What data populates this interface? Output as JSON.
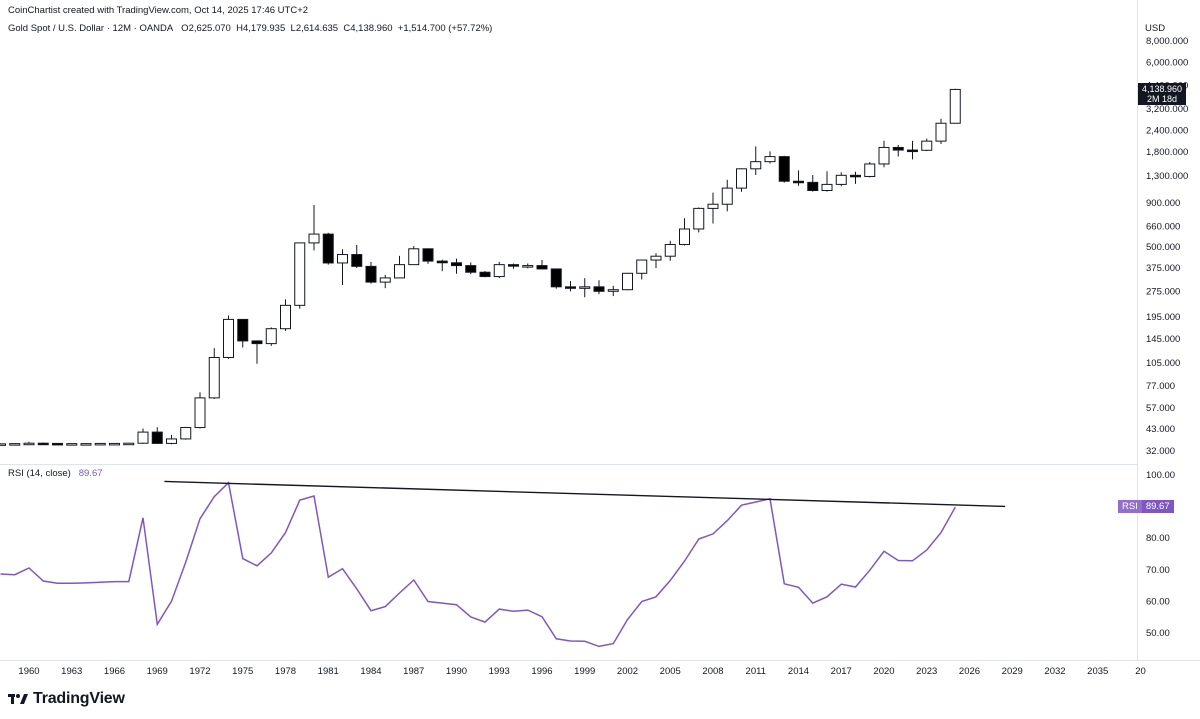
{
  "header": {
    "credit": "CoinChartist created with TradingView.com, Oct 14, 2025 17:46 UTC+2",
    "symbol": "Gold Spot / U.S. Dollar · 12M · OANDA",
    "open_label": "O",
    "open": "2,625.070",
    "high_label": "H",
    "high": "4,179.935",
    "low_label": "L",
    "low": "2,614.635",
    "close_label": "C",
    "close": "4,138.960",
    "change": "+1,514.700 (+57.72%)",
    "currency": "USD"
  },
  "last_price": {
    "value": "4,138.960",
    "countdown": "2M 18d"
  },
  "rsi_panel": {
    "label": "RSI (14, close)",
    "value": "89.67",
    "tag": "RSI"
  },
  "branding": {
    "logo_text": "TradingView"
  },
  "colors": {
    "rsi_line": "#7e57c2",
    "candle_down": "#000000",
    "candle_up_fill": "#ffffff",
    "text": "#131722"
  },
  "chart_data": [
    {
      "type": "candlestick",
      "title": "Gold Spot / U.S. Dollar · 12M · OANDA",
      "y_scale": "log",
      "ylabel": "USD",
      "ylim": [
        28,
        9000
      ],
      "y_ticks": [
        "32.000",
        "43.000",
        "57.000",
        "77.000",
        "105.000",
        "145.000",
        "195.000",
        "275.000",
        "375.000",
        "500.000",
        "660.000",
        "900.000",
        "1,300.000",
        "1,800.000",
        "2,400.000",
        "3,200.000",
        "4,400.000",
        "6,000.000",
        "8,000.000"
      ],
      "x_ticks": [
        "1960",
        "1963",
        "1966",
        "1969",
        "1972",
        "1975",
        "1978",
        "1981",
        "1984",
        "1987",
        "1990",
        "1993",
        "1996",
        "1999",
        "2002",
        "2005",
        "2008",
        "2011",
        "2014",
        "2017",
        "2020",
        "2023",
        "2026",
        "2029",
        "2032",
        "2035",
        "20"
      ],
      "grid": false,
      "candles": [
        {
          "year": 1958,
          "o": 35,
          "h": 35.2,
          "l": 34.9,
          "c": 35
        },
        {
          "year": 1959,
          "o": 35,
          "h": 35.2,
          "l": 34.9,
          "c": 35.1
        },
        {
          "year": 1960,
          "o": 35.1,
          "h": 36,
          "l": 35,
          "c": 35.3
        },
        {
          "year": 1961,
          "o": 35.3,
          "h": 35.6,
          "l": 35,
          "c": 35.2
        },
        {
          "year": 1962,
          "o": 35.2,
          "h": 35.4,
          "l": 35,
          "c": 35.1
        },
        {
          "year": 1963,
          "o": 35.1,
          "h": 35.3,
          "l": 35,
          "c": 35.1
        },
        {
          "year": 1964,
          "o": 35.1,
          "h": 35.3,
          "l": 35,
          "c": 35.1
        },
        {
          "year": 1965,
          "o": 35.1,
          "h": 35.3,
          "l": 35,
          "c": 35.2
        },
        {
          "year": 1966,
          "o": 35.2,
          "h": 35.4,
          "l": 35,
          "c": 35.2
        },
        {
          "year": 1967,
          "o": 35.2,
          "h": 35.5,
          "l": 35,
          "c": 35.3
        },
        {
          "year": 1968,
          "o": 35.3,
          "h": 43,
          "l": 35,
          "c": 41
        },
        {
          "year": 1969,
          "o": 41,
          "h": 43.8,
          "l": 35,
          "c": 35.2
        },
        {
          "year": 1970,
          "o": 35.2,
          "h": 39.5,
          "l": 34.8,
          "c": 37.4
        },
        {
          "year": 1971,
          "o": 37.4,
          "h": 44,
          "l": 37,
          "c": 43.6
        },
        {
          "year": 1972,
          "o": 43.6,
          "h": 70,
          "l": 43,
          "c": 65
        },
        {
          "year": 1973,
          "o": 65,
          "h": 127,
          "l": 64,
          "c": 112
        },
        {
          "year": 1974,
          "o": 112,
          "h": 197,
          "l": 110,
          "c": 187
        },
        {
          "year": 1975,
          "o": 187,
          "h": 186,
          "l": 128,
          "c": 140
        },
        {
          "year": 1976,
          "o": 140,
          "h": 141,
          "l": 103,
          "c": 135
        },
        {
          "year": 1977,
          "o": 135,
          "h": 168,
          "l": 131,
          "c": 165
        },
        {
          "year": 1978,
          "o": 165,
          "h": 245,
          "l": 160,
          "c": 226
        },
        {
          "year": 1979,
          "o": 226,
          "h": 525,
          "l": 216,
          "c": 524
        },
        {
          "year": 1980,
          "o": 524,
          "h": 873,
          "l": 474,
          "c": 590
        },
        {
          "year": 1981,
          "o": 590,
          "h": 600,
          "l": 391,
          "c": 400
        },
        {
          "year": 1982,
          "o": 400,
          "h": 481,
          "l": 297,
          "c": 448
        },
        {
          "year": 1983,
          "o": 448,
          "h": 510,
          "l": 374,
          "c": 382
        },
        {
          "year": 1984,
          "o": 382,
          "h": 406,
          "l": 303,
          "c": 309
        },
        {
          "year": 1985,
          "o": 309,
          "h": 341,
          "l": 285,
          "c": 327
        },
        {
          "year": 1986,
          "o": 327,
          "h": 440,
          "l": 326,
          "c": 391
        },
        {
          "year": 1987,
          "o": 391,
          "h": 502,
          "l": 390,
          "c": 484
        },
        {
          "year": 1988,
          "o": 484,
          "h": 487,
          "l": 395,
          "c": 410
        },
        {
          "year": 1989,
          "o": 410,
          "h": 418,
          "l": 358,
          "c": 401
        },
        {
          "year": 1990,
          "o": 401,
          "h": 424,
          "l": 346,
          "c": 386
        },
        {
          "year": 1991,
          "o": 386,
          "h": 403,
          "l": 344,
          "c": 353
        },
        {
          "year": 1992,
          "o": 353,
          "h": 359,
          "l": 330,
          "c": 333
        },
        {
          "year": 1993,
          "o": 333,
          "h": 406,
          "l": 326,
          "c": 391
        },
        {
          "year": 1994,
          "o": 391,
          "h": 397,
          "l": 370,
          "c": 383
        },
        {
          "year": 1995,
          "o": 383,
          "h": 397,
          "l": 372,
          "c": 386
        },
        {
          "year": 1996,
          "o": 386,
          "h": 416,
          "l": 367,
          "c": 369
        },
        {
          "year": 1997,
          "o": 369,
          "h": 368,
          "l": 283,
          "c": 290
        },
        {
          "year": 1998,
          "o": 290,
          "h": 313,
          "l": 273,
          "c": 288
        },
        {
          "year": 1999,
          "o": 288,
          "h": 326,
          "l": 252,
          "c": 290
        },
        {
          "year": 2000,
          "o": 290,
          "h": 317,
          "l": 263,
          "c": 273
        },
        {
          "year": 2001,
          "o": 273,
          "h": 294,
          "l": 256,
          "c": 279
        },
        {
          "year": 2002,
          "o": 279,
          "h": 350,
          "l": 277,
          "c": 348
        },
        {
          "year": 2003,
          "o": 348,
          "h": 418,
          "l": 320,
          "c": 416
        },
        {
          "year": 2004,
          "o": 416,
          "h": 456,
          "l": 373,
          "c": 438
        },
        {
          "year": 2005,
          "o": 438,
          "h": 539,
          "l": 412,
          "c": 513
        },
        {
          "year": 2006,
          "o": 513,
          "h": 730,
          "l": 506,
          "c": 632
        },
        {
          "year": 2007,
          "o": 632,
          "h": 845,
          "l": 603,
          "c": 834
        },
        {
          "year": 2008,
          "o": 834,
          "h": 1032,
          "l": 681,
          "c": 882
        },
        {
          "year": 2009,
          "o": 882,
          "h": 1226,
          "l": 802,
          "c": 1096
        },
        {
          "year": 2010,
          "o": 1096,
          "h": 1432,
          "l": 1044,
          "c": 1421
        },
        {
          "year": 2011,
          "o": 1421,
          "h": 1921,
          "l": 1308,
          "c": 1565
        },
        {
          "year": 2012,
          "o": 1565,
          "h": 1796,
          "l": 1527,
          "c": 1675
        },
        {
          "year": 2013,
          "o": 1675,
          "h": 1694,
          "l": 1180,
          "c": 1202
        },
        {
          "year": 2014,
          "o": 1202,
          "h": 1392,
          "l": 1131,
          "c": 1184
        },
        {
          "year": 2015,
          "o": 1184,
          "h": 1307,
          "l": 1046,
          "c": 1061
        },
        {
          "year": 2016,
          "o": 1061,
          "h": 1375,
          "l": 1046,
          "c": 1152
        },
        {
          "year": 2017,
          "o": 1152,
          "h": 1357,
          "l": 1124,
          "c": 1302
        },
        {
          "year": 2018,
          "o": 1302,
          "h": 1366,
          "l": 1160,
          "c": 1282
        },
        {
          "year": 2019,
          "o": 1282,
          "h": 1557,
          "l": 1266,
          "c": 1517
        },
        {
          "year": 2020,
          "o": 1517,
          "h": 2075,
          "l": 1451,
          "c": 1895
        },
        {
          "year": 2021,
          "o": 1895,
          "h": 1959,
          "l": 1677,
          "c": 1829
        },
        {
          "year": 2022,
          "o": 1829,
          "h": 2070,
          "l": 1615,
          "c": 1824
        },
        {
          "year": 2023,
          "o": 1824,
          "h": 2135,
          "l": 1804,
          "c": 2063
        },
        {
          "year": 2024,
          "o": 2063,
          "h": 2790,
          "l": 1984,
          "c": 2625
        },
        {
          "year": 2025,
          "o": 2625.07,
          "h": 4179.935,
          "l": 2614.635,
          "c": 4138.96
        }
      ]
    },
    {
      "type": "line",
      "title": "RSI (14, close)",
      "ylim": [
        42,
        102
      ],
      "y_ticks": [
        "50.00",
        "60.00",
        "70.00",
        "80.00",
        "100.00"
      ],
      "series": [
        {
          "name": "RSI (14, close)",
          "x": [
            1958,
            1959,
            1960,
            1961,
            1962,
            1963,
            1964,
            1965,
            1966,
            1967,
            1968,
            1969,
            1970,
            1971,
            1972,
            1973,
            1974,
            1975,
            1976,
            1977,
            1978,
            1979,
            1980,
            1981,
            1982,
            1983,
            1984,
            1985,
            1986,
            1987,
            1988,
            1989,
            1990,
            1991,
            1992,
            1993,
            1994,
            1995,
            1996,
            1997,
            1998,
            1999,
            2000,
            2001,
            2002,
            2003,
            2004,
            2005,
            2006,
            2007,
            2008,
            2009,
            2010,
            2011,
            2012,
            2013,
            2014,
            2015,
            2016,
            2017,
            2018,
            2019,
            2020,
            2021,
            2022,
            2023,
            2024,
            2025
          ],
          "values": [
            68.5,
            68.3,
            70.4,
            66.3,
            65.6,
            65.6,
            65.7,
            65.9,
            66.1,
            66.1,
            86.3,
            52.6,
            59.9,
            72.3,
            86,
            93,
            97.4,
            73.4,
            71.1,
            75.2,
            81.6,
            91.9,
            93.2,
            67.5,
            70.2,
            63.8,
            56.9,
            58.2,
            62.5,
            66.6,
            59.8,
            59.3,
            58.8,
            54.9,
            53.3,
            57.4,
            56.7,
            57.1,
            55,
            48,
            47.3,
            47.2,
            45.6,
            46.5,
            54.1,
            59.8,
            61.3,
            66.5,
            72.6,
            79.6,
            81.2,
            85.4,
            90.3,
            91.3,
            92.3,
            65.4,
            64.3,
            59.3,
            61.3,
            65.3,
            64.4,
            69.7,
            75.7,
            72.8,
            72.7,
            76.1,
            81.6,
            89.67
          ]
        },
        {
          "name": "",
          "x": [
            1969.5,
            2028.5
          ],
          "values": [
            97.8,
            89.9
          ]
        }
      ]
    }
  ]
}
